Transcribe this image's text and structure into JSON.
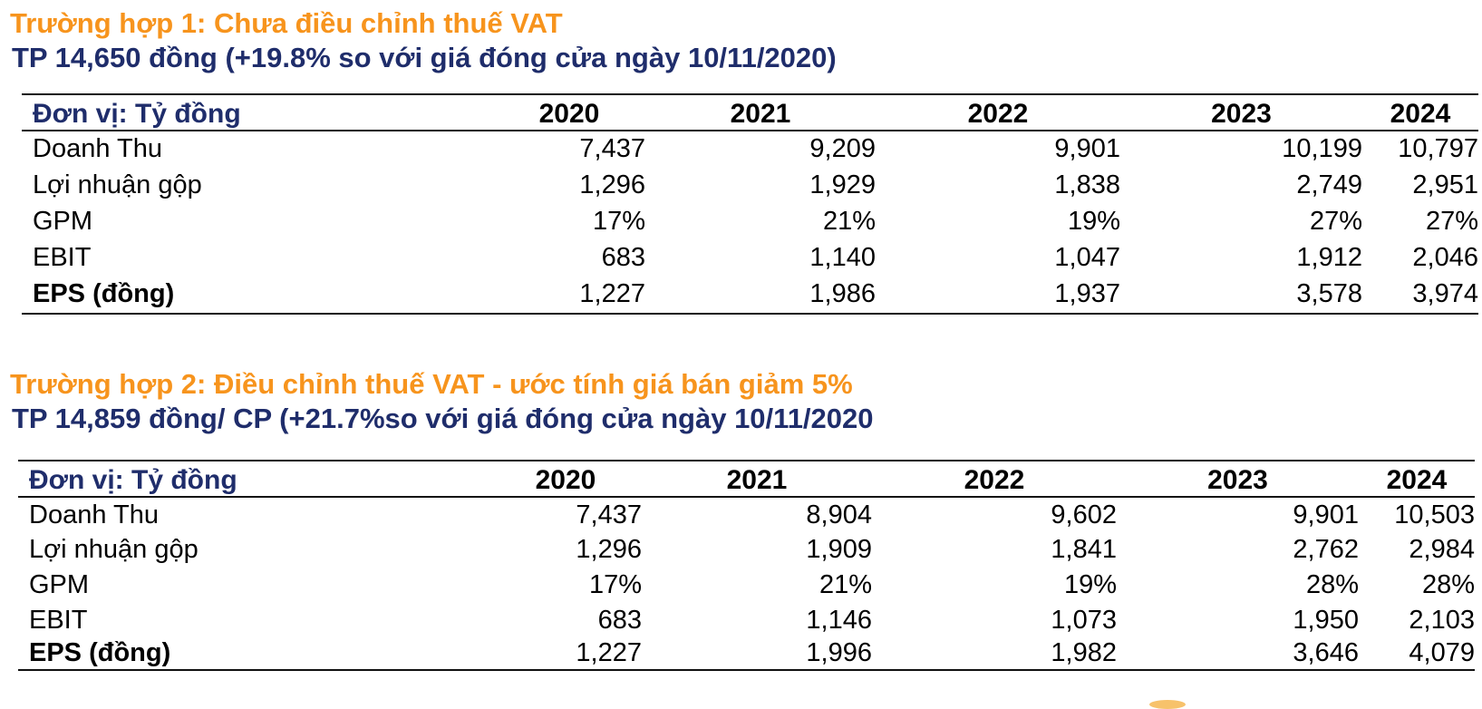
{
  "case1": {
    "title": "Trường hợp 1: Chưa điều chỉnh thuế VAT",
    "subtitle": "TP 14,650 đồng (+19.8% so với giá đóng cửa ngày 10/11/2020)",
    "table": {
      "unit_label": "Đơn vị: Tỷ đồng",
      "years": [
        "2020",
        "2021",
        "2022",
        "2023",
        "2024"
      ],
      "rows": [
        {
          "label": "Doanh Thu",
          "values": [
            "7,437",
            "9,209",
            "9,901",
            "10,199",
            "10,797"
          ]
        },
        {
          "label": "Lợi nhuận gộp",
          "values": [
            "1,296",
            "1,929",
            "1,838",
            "2,749",
            "2,951"
          ]
        },
        {
          "label": "GPM",
          "values": [
            "17%",
            "21%",
            "19%",
            "27%",
            "27%"
          ]
        },
        {
          "label": "EBIT",
          "values": [
            "683",
            "1,140",
            "1,047",
            "1,912",
            "2,046"
          ]
        },
        {
          "label": "EPS (đồng)",
          "values": [
            "1,227",
            "1,986",
            "1,937",
            "3,578",
            "3,974"
          ]
        }
      ]
    }
  },
  "case2": {
    "title": "Trường hợp 2: Điều chỉnh thuế VAT - ước tính giá bán giảm 5%",
    "subtitle": "TP 14,859 đồng/ CP (+21.7%so với giá đóng cửa ngày 10/11/2020",
    "table": {
      "unit_label": "Đơn vị: Tỷ đồng",
      "years": [
        "2020",
        "2021",
        "2022",
        "2023",
        "2024"
      ],
      "rows": [
        {
          "label": "Doanh Thu",
          "values": [
            "7,437",
            "8,904",
            "9,602",
            "9,901",
            "10,503"
          ]
        },
        {
          "label": "Lợi nhuận gộp",
          "values": [
            "1,296",
            "1,909",
            "1,841",
            "2,762",
            "2,984"
          ]
        },
        {
          "label": "GPM",
          "values": [
            "17%",
            "21%",
            "19%",
            "28%",
            "28%"
          ]
        },
        {
          "label": "EBIT",
          "values": [
            "683",
            "1,146",
            "1,073",
            "1,950",
            "2,103"
          ]
        },
        {
          "label": "EPS (đồng)",
          "values": [
            "1,227",
            "1,996",
            "1,982",
            "3,646",
            "4,079"
          ]
        }
      ]
    }
  },
  "colors": {
    "title_orange": "#f7941d",
    "navy": "#1f2d6b",
    "rule": "#111111"
  }
}
